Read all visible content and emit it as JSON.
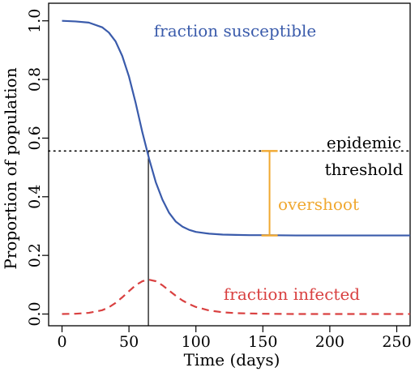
{
  "chart_data": {
    "type": "line",
    "xlabel": "Time (days)",
    "ylabel": "Proportion of population",
    "xlim": [
      -10,
      260
    ],
    "ylim": [
      -0.04,
      1.06
    ],
    "x_ticks": [
      0,
      50,
      100,
      150,
      200,
      250
    ],
    "y_ticks": [
      0.0,
      0.2,
      0.4,
      0.6,
      0.8,
      1.0
    ],
    "y_tick_labels": [
      "0.0",
      "0.2",
      "0.4",
      "0.6",
      "0.8",
      "1.0"
    ],
    "grid": false,
    "series": [
      {
        "name": "fraction susceptible",
        "color": "#3a5bab",
        "style": "solid",
        "x": [
          0,
          10,
          20,
          30,
          35,
          40,
          45,
          50,
          55,
          60,
          65,
          70,
          75,
          80,
          85,
          90,
          95,
          100,
          110,
          120,
          130,
          140,
          150,
          175,
          200,
          225,
          260
        ],
        "y": [
          1.0,
          0.998,
          0.994,
          0.978,
          0.96,
          0.93,
          0.88,
          0.81,
          0.72,
          0.62,
          0.53,
          0.45,
          0.39,
          0.345,
          0.315,
          0.298,
          0.287,
          0.28,
          0.274,
          0.271,
          0.27,
          0.269,
          0.269,
          0.268,
          0.268,
          0.268,
          0.268
        ]
      },
      {
        "name": "fraction infected",
        "color": "#d94040",
        "style": "dashed",
        "x": [
          0,
          10,
          20,
          30,
          35,
          40,
          45,
          50,
          55,
          60,
          65,
          70,
          75,
          80,
          85,
          90,
          95,
          100,
          110,
          120,
          130,
          140,
          150,
          175,
          200,
          225,
          260
        ],
        "y": [
          0.0,
          0.001,
          0.004,
          0.013,
          0.023,
          0.038,
          0.057,
          0.078,
          0.098,
          0.112,
          0.117,
          0.112,
          0.098,
          0.08,
          0.062,
          0.046,
          0.034,
          0.024,
          0.012,
          0.006,
          0.003,
          0.002,
          0.001,
          0.0,
          0.0,
          0.0,
          0.0
        ]
      }
    ],
    "threshold": {
      "y": 0.556,
      "color": "#000000",
      "style": "dotted"
    },
    "peak_marker": {
      "x": 64.5,
      "y_from": -0.04,
      "y_to": 0.556,
      "color": "#000000"
    },
    "overshoot": {
      "x": 155,
      "y_from": 0.268,
      "y_to": 0.556,
      "color": "#f0a830"
    },
    "annotations": [
      {
        "key": "susceptible",
        "text": "fraction susceptible",
        "color": "#3a5bab"
      },
      {
        "key": "infected",
        "text": "fraction infected",
        "color": "#d94040"
      },
      {
        "key": "epidemic",
        "text": "epidemic",
        "color": "#000000"
      },
      {
        "key": "threshold",
        "text": "threshold",
        "color": "#000000"
      },
      {
        "key": "overshoot",
        "text": "overshoot",
        "color": "#f0a830"
      }
    ]
  }
}
